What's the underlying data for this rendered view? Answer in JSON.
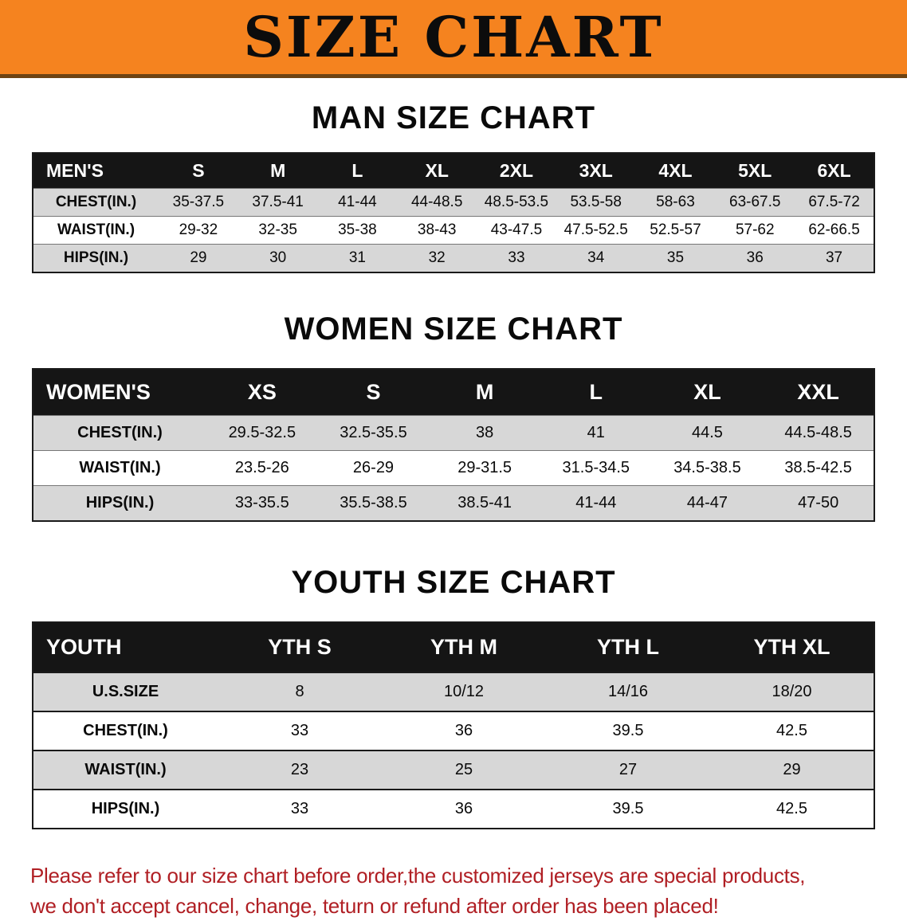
{
  "banner": {
    "title": "SIZE CHART"
  },
  "chart_data": [
    {
      "type": "table",
      "title": "MAN SIZE CHART",
      "header": [
        "MEN'S",
        "S",
        "M",
        "L",
        "XL",
        "2XL",
        "3XL",
        "4XL",
        "5XL",
        "6XL"
      ],
      "rows": [
        [
          "CHEST(IN.)",
          "35-37.5",
          "37.5-41",
          "41-44",
          "44-48.5",
          "48.5-53.5",
          "53.5-58",
          "58-63",
          "63-67.5",
          "67.5-72"
        ],
        [
          "WAIST(IN.)",
          "29-32",
          "32-35",
          "35-38",
          "38-43",
          "43-47.5",
          "47.5-52.5",
          "52.5-57",
          "57-62",
          "62-66.5"
        ],
        [
          "HIPS(IN.)",
          "29",
          "30",
          "31",
          "32",
          "33",
          "34",
          "35",
          "36",
          "37"
        ]
      ]
    },
    {
      "type": "table",
      "title": "WOMEN SIZE CHART",
      "header": [
        "WOMEN'S",
        "XS",
        "S",
        "M",
        "L",
        "XL",
        "XXL"
      ],
      "rows": [
        [
          "CHEST(IN.)",
          "29.5-32.5",
          "32.5-35.5",
          "38",
          "41",
          "44.5",
          "44.5-48.5"
        ],
        [
          "WAIST(IN.)",
          "23.5-26",
          "26-29",
          "29-31.5",
          "31.5-34.5",
          "34.5-38.5",
          "38.5-42.5"
        ],
        [
          "HIPS(IN.)",
          "33-35.5",
          "35.5-38.5",
          "38.5-41",
          "41-44",
          "44-47",
          "47-50"
        ]
      ]
    },
    {
      "type": "table",
      "title": "YOUTH SIZE CHART",
      "header": [
        "YOUTH",
        "YTH S",
        "YTH M",
        "YTH L",
        "YTH XL"
      ],
      "rows": [
        [
          "U.S.SIZE",
          "8",
          "10/12",
          "14/16",
          "18/20"
        ],
        [
          "CHEST(IN.)",
          "33",
          "36",
          "39.5",
          "42.5"
        ],
        [
          "WAIST(IN.)",
          "23",
          "25",
          "27",
          "29"
        ],
        [
          "HIPS(IN.)",
          "33",
          "36",
          "39.5",
          "42.5"
        ]
      ]
    }
  ],
  "disclaimer": {
    "line1": "Please refer to our size chart before order,the customized jerseys are special products,",
    "line2": "we don't accept cancel, change, teturn or refund after order has been placed!"
  },
  "colors": {
    "banner_bg": "#f5831f",
    "header_bg": "#151515",
    "row_shade": "#d7d7d7",
    "disclaimer_text": "#b01f24"
  }
}
